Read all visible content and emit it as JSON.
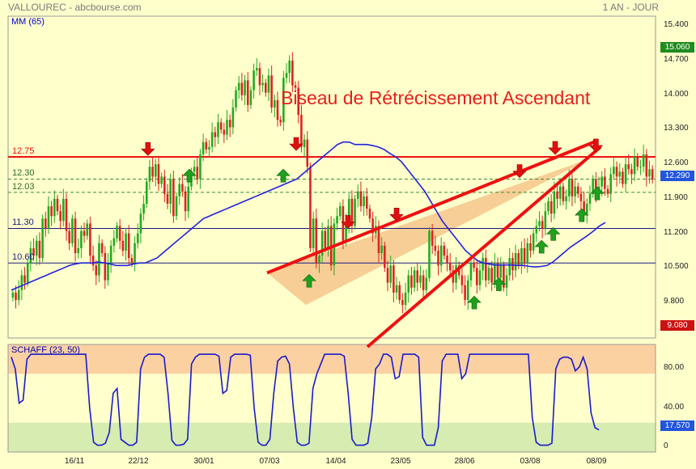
{
  "header": {
    "left": "VALLOUREC - abcbourse.com",
    "right": "1 AN - JOUR"
  },
  "colors": {
    "background": "#ffffcc",
    "up": "#22aa22",
    "down": "#dd2222",
    "ma": "#2222dd",
    "trend": "#ee1111",
    "wedge": "#f6c98f",
    "schaff_top": "#fbd1a2",
    "schaff_bottom": "#d6ecb0"
  },
  "chart_data": [
    {
      "type": "candlestick",
      "ylim": [
        9.08,
        15.6
      ],
      "yticks": [
        "15.400",
        "14.700",
        "14.000",
        "13.300",
        "12.600",
        "11.900",
        "11.200",
        "10.500",
        "9.800"
      ],
      "xticks": [
        "16/11",
        "22/12",
        "30/01",
        "07/03",
        "14/04",
        "23/05",
        "28/06",
        "03/08",
        "08/09"
      ],
      "ma_label": "MM (65)",
      "price_label": "12.290",
      "high_box": "15.060",
      "low_box": "9.080",
      "annotation": "Biseau de Rétrécissement Ascendant",
      "levels": [
        {
          "label": "12.75",
          "value": 12.75,
          "style": "red"
        },
        {
          "label": "12.30",
          "value": 12.3,
          "style": "green-dash"
        },
        {
          "label": "12.03",
          "value": 12.03,
          "style": "green-dash"
        },
        {
          "label": "11.30",
          "value": 11.3,
          "style": "navy"
        },
        {
          "label": "10.60",
          "value": 10.6,
          "style": "navy"
        }
      ],
      "close": [
        10.0,
        9.85,
        10.05,
        10.35,
        10.2,
        10.6,
        10.9,
        10.75,
        11.05,
        10.7,
        11.5,
        11.3,
        11.75,
        11.55,
        11.9,
        11.65,
        11.45,
        11.9,
        11.25,
        11.0,
        11.5,
        10.8,
        10.9,
        11.25,
        11.15,
        11.4,
        10.75,
        10.55,
        10.35,
        11.0,
        10.8,
        10.25,
        10.6,
        10.95,
        11.1,
        11.35,
        11.05,
        10.85,
        11.2,
        10.7,
        10.6,
        11.0,
        11.2,
        11.6,
        11.8,
        12.25,
        12.55,
        12.35,
        12.6,
        12.2,
        12.35,
        12.0,
        11.8,
        12.3,
        11.55,
        11.95,
        12.2,
        12.05,
        11.65,
        12.15,
        12.45,
        12.55,
        12.3,
        12.8,
        13.05,
        12.9,
        12.95,
        13.25,
        13.15,
        13.45,
        13.3,
        13.2,
        13.5,
        13.35,
        13.75,
        14.1,
        14.25,
        14.0,
        14.3,
        13.8,
        14.1,
        14.5,
        14.55,
        14.2,
        14.25,
        14.05,
        14.4,
        13.75,
        13.9,
        13.5,
        13.45,
        14.35,
        14.45,
        14.7,
        14.2,
        14.15,
        13.6,
        12.95,
        13.1,
        12.55,
        10.9,
        11.5,
        10.6,
        10.75,
        11.25,
        10.9,
        11.35,
        10.55,
        11.4,
        11.55,
        11.75,
        11.05,
        11.4,
        11.9,
        11.35,
        11.9,
        12.05,
        11.75,
        11.95,
        11.7,
        11.5,
        11.2,
        11.35,
        10.8,
        10.95,
        10.5,
        10.2,
        10.55,
        10.0,
        10.15,
        9.85,
        9.75,
        10.0,
        10.35,
        10.1,
        10.45,
        10.2,
        10.35,
        10.05,
        10.3,
        11.25,
        10.95,
        10.85,
        10.55,
        10.95,
        10.75,
        10.6,
        10.45,
        10.2,
        10.55,
        10.35,
        10.15,
        9.85,
        10.25,
        10.6,
        10.5,
        10.15,
        10.45,
        10.7,
        10.25,
        10.5,
        10.2,
        10.6,
        10.3,
        10.55,
        10.1,
        10.35,
        10.7,
        10.45,
        10.8,
        10.55,
        10.9,
        10.6,
        11.0,
        10.85,
        11.2,
        11.35,
        11.45,
        11.3,
        11.65,
        11.85,
        11.6,
        12.05,
        11.9,
        12.15,
        11.85,
        11.95,
        12.3,
        11.95,
        12.15,
        12.0,
        11.85,
        11.6,
        11.8,
        12.0,
        12.3,
        12.0,
        12.15,
        12.35,
        12.1,
        12.0,
        12.4,
        12.55,
        12.35,
        12.45,
        12.2,
        12.6,
        12.5,
        12.4,
        12.75,
        12.55,
        12.55,
        12.8,
        12.35,
        12.5,
        12.29
      ],
      "ma": [
        10.05,
        10.1,
        10.15,
        10.2,
        10.25,
        10.3,
        10.35,
        10.4,
        10.45,
        10.5,
        10.55,
        10.58,
        10.6,
        10.6,
        10.6,
        10.62,
        10.6,
        10.58,
        10.55,
        10.55,
        10.55,
        10.58,
        10.6,
        10.6,
        10.65,
        10.7,
        10.8,
        10.9,
        11.0,
        11.1,
        11.2,
        11.3,
        11.4,
        11.5,
        11.55,
        11.6,
        11.65,
        11.7,
        11.75,
        11.8,
        11.85,
        11.9,
        11.95,
        12.0,
        12.05,
        12.1,
        12.15,
        12.2,
        12.25,
        12.3,
        12.4,
        12.5,
        12.6,
        12.7,
        12.8,
        12.9,
        13.0,
        13.05,
        13.05,
        13.0,
        13.0,
        13.0,
        12.98,
        12.95,
        12.9,
        12.82,
        12.75,
        12.65,
        12.5,
        12.35,
        12.2,
        12.05,
        11.85,
        11.65,
        11.45,
        11.3,
        11.15,
        11.0,
        10.85,
        10.75,
        10.65,
        10.6,
        10.58,
        10.56,
        10.56,
        10.56,
        10.56,
        10.55,
        10.55,
        10.53,
        10.52,
        10.53,
        10.55,
        10.62,
        10.72,
        10.82,
        10.92,
        11.0,
        11.08,
        11.16,
        11.25,
        11.35,
        11.42
      ],
      "wedge": {
        "upper": [
          [
            0.4,
            10.4
          ],
          [
            0.905,
            13.05
          ]
        ],
        "lower": [
          [
            0.555,
            8.9
          ],
          [
            0.915,
            12.95
          ]
        ]
      }
    },
    {
      "type": "line",
      "title": "SCHAFF (23, 50)",
      "yticks": [
        "80.00",
        "40.00",
        "0"
      ],
      "last_value": "17.570",
      "values": [
        92,
        80,
        45,
        48,
        90,
        95,
        95,
        95,
        95,
        95,
        95,
        95,
        95,
        95,
        95,
        95,
        95,
        95,
        95,
        95,
        40,
        5,
        2,
        2,
        4,
        15,
        55,
        60,
        8,
        5,
        2,
        2,
        5,
        80,
        92,
        95,
        95,
        95,
        95,
        92,
        55,
        7,
        2,
        2,
        3,
        8,
        85,
        92,
        95,
        95,
        95,
        95,
        95,
        93,
        55,
        58,
        92,
        95,
        95,
        95,
        95,
        94,
        40,
        5,
        2,
        2,
        8,
        55,
        88,
        92,
        93,
        85,
        40,
        5,
        2,
        2,
        4,
        60,
        75,
        85,
        95,
        95,
        95,
        95,
        95,
        93,
        55,
        8,
        2,
        2,
        2,
        4,
        30,
        80,
        85,
        95,
        95,
        92,
        70,
        72,
        95,
        95,
        95,
        95,
        92,
        10,
        2,
        2,
        2,
        20,
        88,
        95,
        95,
        95,
        95,
        70,
        75,
        95,
        95,
        95,
        95,
        95,
        95,
        95,
        95,
        95,
        95,
        95,
        95,
        95,
        95,
        95,
        95,
        30,
        5,
        2,
        2,
        2,
        4,
        80,
        90,
        92,
        92,
        90,
        78,
        82,
        92,
        80,
        35,
        20,
        17.57
      ]
    }
  ]
}
